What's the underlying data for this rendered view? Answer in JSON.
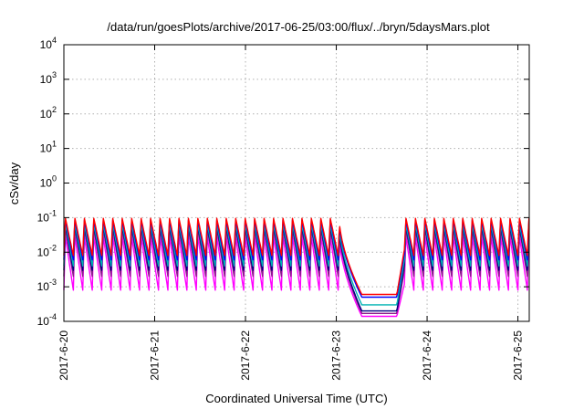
{
  "chart_data": {
    "type": "line",
    "title": "/data/run/goesPlots/archive/2017-06-25/03:00/flux/../bryn/5daysMars.plot",
    "xlabel": "Coordinated Universal Time (UTC)",
    "ylabel": "cSv/day",
    "yscale": "log",
    "ylim": [
      0.0001,
      10000
    ],
    "xlim": [
      "2017-06-20T00:00",
      "2017-06-25T03:00"
    ],
    "grid": true,
    "legend": "none",
    "y_ticks": [
      {
        "base": "10",
        "exp": "-4"
      },
      {
        "base": "10",
        "exp": "-3"
      },
      {
        "base": "10",
        "exp": "-2"
      },
      {
        "base": "10",
        "exp": "-1"
      },
      {
        "base": "10",
        "exp": "0"
      },
      {
        "base": "10",
        "exp": "1"
      },
      {
        "base": "10",
        "exp": "2"
      },
      {
        "base": "10",
        "exp": "3"
      },
      {
        "base": "10",
        "exp": "4"
      }
    ],
    "x_ticks": [
      "2017-6-20",
      "2017-6-21",
      "2017-6-22",
      "2017-6-23",
      "2017-6-24",
      "2017-6-25"
    ],
    "x_tick_values": [
      "2017-06-20",
      "2017-06-21",
      "2017-06-22",
      "2017-06-23",
      "2017-06-24",
      "2017-06-25"
    ],
    "pattern": {
      "sawtooth_period_hours": 2.5,
      "gap_start": "2017-06-23T00:45",
      "gap_end": "2017-06-23T18:00"
    },
    "series": [
      {
        "color": "#ff00ff",
        "peak": 0.03,
        "trough": 0.0008,
        "gap_level": 0.00014
      },
      {
        "color": "#8b1a8b",
        "peak": 0.05,
        "trough": 0.002,
        "gap_level": 0.00017
      },
      {
        "color": "#000080",
        "peak": 0.06,
        "trough": 0.003,
        "gap_level": 0.0002
      },
      {
        "color": "#00b3b3",
        "peak": 0.07,
        "trough": 0.004,
        "gap_level": 0.0003
      },
      {
        "color": "#0000ff",
        "peak": 0.09,
        "trough": 0.006,
        "gap_level": 0.0005
      },
      {
        "color": "#ff0000",
        "peak": 0.1,
        "trough": 0.008,
        "gap_level": 0.0006
      }
    ]
  }
}
